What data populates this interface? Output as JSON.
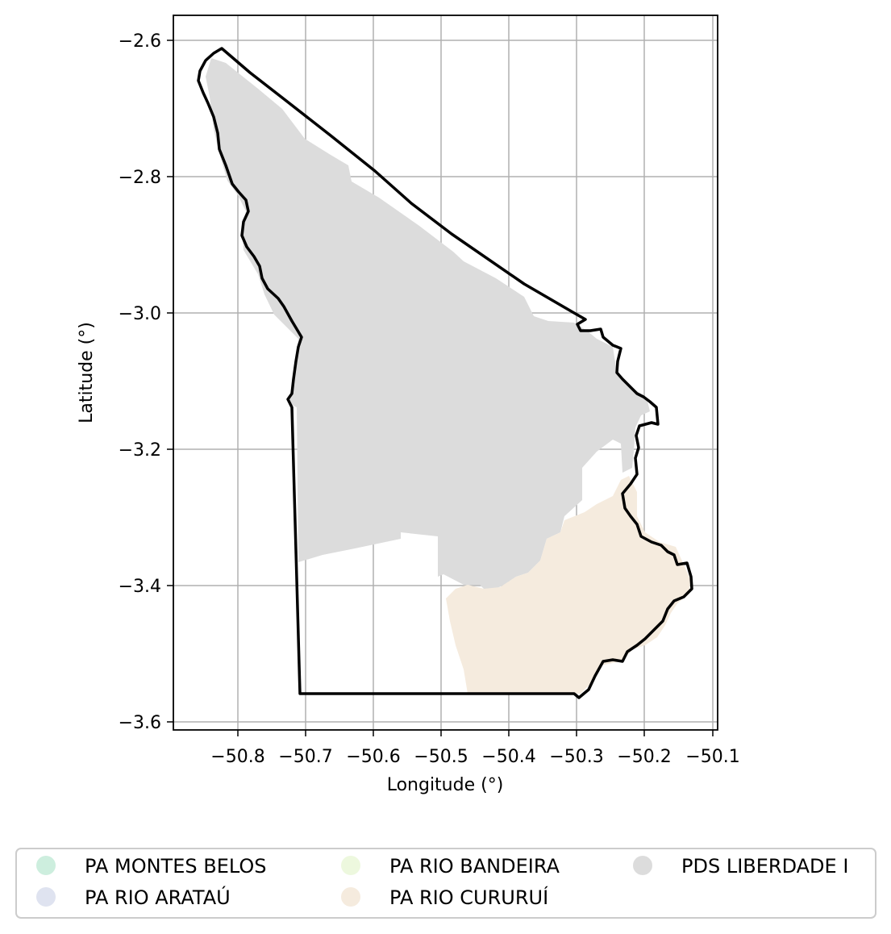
{
  "axes": {
    "xlabel": "Longitude (°)",
    "ylabel": "Latitude (°)",
    "xticks": [
      "−50.8",
      "−50.7",
      "−50.6",
      "−50.5",
      "−50.4",
      "−50.3",
      "−50.2",
      "−50.1"
    ],
    "yticks": [
      "−2.6",
      "−2.8",
      "−3.0",
      "−3.2",
      "−3.4",
      "−3.6"
    ],
    "xlim": [
      -50.895,
      -50.09
    ],
    "ylim": [
      -3.612,
      -2.563
    ],
    "grid": true
  },
  "legend": {
    "placement": "bottom",
    "entries": [
      {
        "label": "PA MONTES BELOS",
        "color": "#cdeede"
      },
      {
        "label": "PA RIO ARATAÚ",
        "color": "#dfe3f0"
      },
      {
        "label": "PA RIO BANDEIRA",
        "color": "#edf8de"
      },
      {
        "label": "PA RIO CURURUÍ",
        "color": "#f5ebde"
      },
      {
        "label": "PDS LIBERDADE I",
        "color": "#dcdcdc"
      }
    ]
  },
  "colors": {
    "boundary": "#000000",
    "grid": "#b0b0b0"
  }
}
